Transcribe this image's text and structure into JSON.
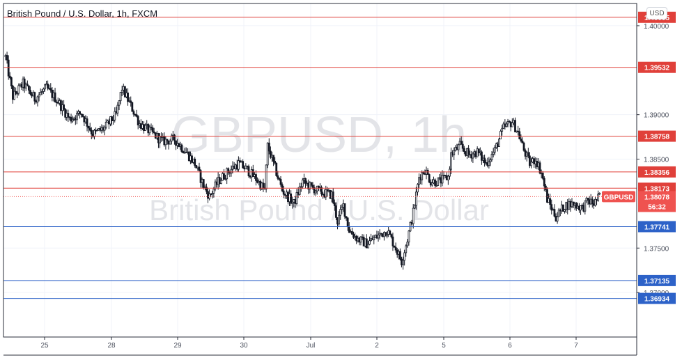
{
  "header": {
    "title": "British Pound / U.S. Dollar, 1h, FXCM",
    "currency_button": "USD"
  },
  "watermark": {
    "symbol": "GBPUSD, 1h",
    "name": "British Pound / U.S. Dollar"
  },
  "colors": {
    "up": "#26a69a",
    "down": "#ef5350",
    "candle": "#131722",
    "resistance": "#e0403a",
    "support": "#2d62c8",
    "last_price": "#ef5350"
  },
  "chart_data": {
    "type": "candlestick",
    "title": "British Pound / U.S. Dollar, 1h, FXCM",
    "ylim": [
      1.365,
      1.4025
    ],
    "y_ticks": [
      "1.40000",
      "1.39000",
      "1.38500",
      "1.37500",
      "1.37000"
    ],
    "x_ticks": [
      "25",
      "28",
      "29",
      "30",
      "Jul",
      "2",
      "5",
      "6",
      "7"
    ],
    "resistance_levels": [
      "1.40095",
      "1.39532",
      "1.38758",
      "1.38356",
      "1.38173"
    ],
    "support_levels": [
      "1.37741",
      "1.37135",
      "1.36934"
    ],
    "last_price": {
      "label": "GBPUSD",
      "value": "1.38078",
      "countdown": "56:32"
    },
    "close_path": [
      [
        0,
        1.3965
      ],
      [
        5,
        1.392
      ],
      [
        12,
        1.3935
      ],
      [
        20,
        1.3918
      ],
      [
        28,
        1.393
      ],
      [
        36,
        1.3915
      ],
      [
        44,
        1.3895
      ],
      [
        52,
        1.3902
      ],
      [
        60,
        1.3878
      ],
      [
        68,
        1.3885
      ],
      [
        76,
        1.39
      ],
      [
        80,
        1.393
      ],
      [
        86,
        1.391
      ],
      [
        92,
        1.389
      ],
      [
        100,
        1.388
      ],
      [
        108,
        1.387
      ],
      [
        116,
        1.3872
      ],
      [
        124,
        1.3858
      ],
      [
        130,
        1.3845
      ],
      [
        136,
        1.382
      ],
      [
        140,
        1.3808
      ],
      [
        146,
        1.3825
      ],
      [
        152,
        1.3835
      ],
      [
        160,
        1.3845
      ],
      [
        166,
        1.3838
      ],
      [
        172,
        1.3828
      ],
      [
        178,
        1.3815
      ],
      [
        180,
        1.3865
      ],
      [
        185,
        1.384
      ],
      [
        190,
        1.3815
      ],
      [
        198,
        1.38
      ],
      [
        204,
        1.3825
      ],
      [
        210,
        1.3818
      ],
      [
        218,
        1.3812
      ],
      [
        224,
        1.381
      ],
      [
        228,
        1.378
      ],
      [
        232,
        1.3798
      ],
      [
        236,
        1.377
      ],
      [
        242,
        1.376
      ],
      [
        248,
        1.3755
      ],
      [
        254,
        1.3762
      ],
      [
        262,
        1.377
      ],
      [
        268,
        1.375
      ],
      [
        272,
        1.3735
      ],
      [
        276,
        1.376
      ],
      [
        280,
        1.379
      ],
      [
        284,
        1.383
      ],
      [
        288,
        1.3838
      ],
      [
        292,
        1.3825
      ],
      [
        298,
        1.3825
      ],
      [
        304,
        1.383
      ],
      [
        306,
        1.3855
      ],
      [
        312,
        1.3865
      ],
      [
        318,
        1.3855
      ],
      [
        324,
        1.3858
      ],
      [
        330,
        1.3845
      ],
      [
        336,
        1.386
      ],
      [
        342,
        1.3885
      ],
      [
        348,
        1.3892
      ],
      [
        352,
        1.388
      ],
      [
        356,
        1.386
      ],
      [
        360,
        1.3845
      ],
      [
        364,
        1.385
      ],
      [
        368,
        1.3835
      ],
      [
        372,
        1.3805
      ],
      [
        378,
        1.3785
      ],
      [
        384,
        1.3798
      ],
      [
        390,
        1.38
      ],
      [
        396,
        1.3795
      ],
      [
        400,
        1.3803
      ],
      [
        404,
        1.38
      ],
      [
        408,
        1.3808
      ]
    ]
  }
}
